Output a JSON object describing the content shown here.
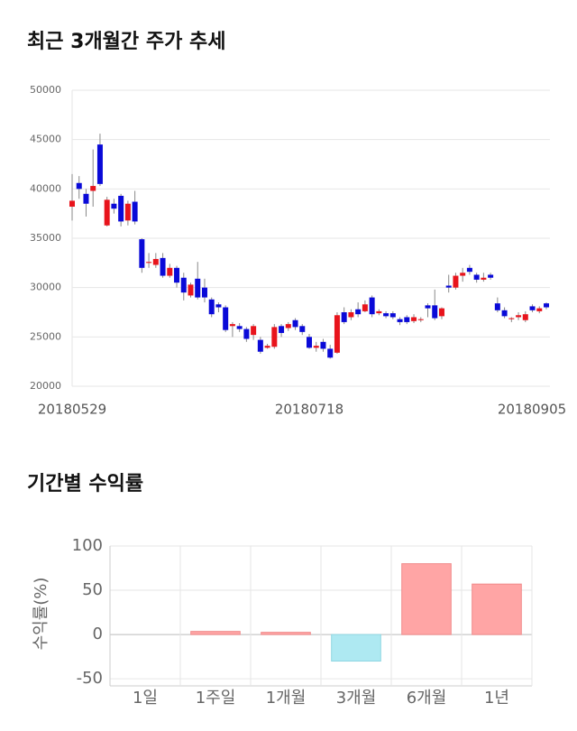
{
  "chart_data": [
    {
      "type": "candlestick",
      "title": "최근 3개월간 주가 추세",
      "categories": [
        "20180529",
        null,
        null,
        null,
        null,
        null,
        null,
        null,
        null,
        null,
        null,
        null,
        null,
        null,
        null,
        null,
        null,
        null,
        null,
        null,
        null,
        null,
        null,
        null,
        null,
        null,
        null,
        null,
        null,
        null,
        null,
        null,
        null,
        null,
        "20180718",
        null,
        null,
        null,
        null,
        null,
        null,
        null,
        null,
        null,
        null,
        null,
        null,
        null,
        null,
        null,
        null,
        null,
        null,
        null,
        null,
        null,
        null,
        null,
        null,
        null,
        null,
        null,
        null,
        null,
        null,
        null,
        null,
        null,
        "20180905"
      ],
      "open": [
        38200,
        40600,
        39500,
        39800,
        44500,
        36300,
        38500,
        39300,
        36800,
        38700,
        34900,
        32500,
        32300,
        33000,
        31200,
        32000,
        31000,
        29200,
        30900,
        30000,
        28800,
        28300,
        28000,
        26100,
        26100,
        25800,
        25200,
        24700,
        23900,
        24000,
        26100,
        25900,
        26700,
        26100,
        25000,
        23900,
        24500,
        23800,
        23400,
        27500,
        27000,
        27800,
        27600,
        29000,
        27400,
        27400,
        27400,
        26800,
        27000,
        26600,
        26700,
        28200,
        28200,
        27100,
        30200,
        30000,
        31200,
        32000,
        31300,
        30800,
        31300,
        28400,
        27700,
        26800,
        27000,
        26700,
        28100,
        27600,
        28400
      ],
      "high": [
        41500,
        41300,
        40000,
        44000,
        45600,
        39200,
        39000,
        39500,
        38800,
        39800,
        35000,
        33500,
        33500,
        33500,
        32400,
        32200,
        31500,
        30500,
        32600,
        30900,
        29000,
        28500,
        28200,
        26500,
        26400,
        26000,
        26300,
        25000,
        24300,
        26300,
        26300,
        26500,
        26900,
        26300,
        25300,
        24500,
        24800,
        24200,
        27500,
        28000,
        27800,
        28500,
        28700,
        29200,
        27800,
        27600,
        27600,
        27000,
        27200,
        27300,
        27000,
        28400,
        29800,
        28000,
        31300,
        31500,
        32000,
        32300,
        31500,
        31500,
        31500,
        29000,
        28000,
        27000,
        27500,
        27600,
        28300,
        28100,
        28500
      ],
      "low": [
        36800,
        39000,
        37200,
        38200,
        40300,
        36200,
        37500,
        36200,
        36300,
        36400,
        31500,
        32000,
        32000,
        31000,
        31000,
        30000,
        28700,
        29000,
        28800,
        28500,
        27000,
        27500,
        25500,
        25000,
        25500,
        24500,
        24700,
        23300,
        23800,
        23800,
        25000,
        25600,
        25700,
        25200,
        23800,
        23500,
        23500,
        22800,
        23300,
        26300,
        26700,
        27000,
        27500,
        27000,
        27200,
        26900,
        26800,
        26200,
        26300,
        26400,
        26500,
        27000,
        26700,
        26800,
        29500,
        29800,
        30600,
        31300,
        30500,
        30600,
        30800,
        27500,
        26900,
        26500,
        26700,
        26500,
        27500,
        27400,
        27800
      ],
      "close": [
        38800,
        40000,
        38500,
        40300,
        40500,
        38900,
        38000,
        36700,
        38500,
        36700,
        32000,
        32600,
        32900,
        31200,
        32000,
        30500,
        29500,
        30300,
        29000,
        29000,
        27300,
        28000,
        25700,
        26300,
        25800,
        24800,
        26100,
        23500,
        24100,
        26000,
        25400,
        26300,
        26000,
        25500,
        23900,
        24100,
        23800,
        22900,
        27200,
        26500,
        27500,
        27300,
        28300,
        27300,
        27600,
        27100,
        27000,
        26500,
        26500,
        27000,
        26800,
        27900,
        26900,
        27900,
        30000,
        31200,
        31500,
        31600,
        30800,
        31000,
        31000,
        27700,
        27100,
        26900,
        27200,
        27300,
        27700,
        27900,
        28000
      ],
      "up_color": "#e8141c",
      "down_color": "#0a0ad8",
      "ylim": [
        20000,
        50000
      ],
      "yticks": [
        20000,
        25000,
        30000,
        35000,
        40000,
        45000,
        50000
      ],
      "grid": true
    },
    {
      "type": "bar",
      "title": "기간별 수익률",
      "ylabel": "수익률(%)",
      "categories": [
        "1일",
        "1주일",
        "1개월",
        "3개월",
        "6개월",
        "1년"
      ],
      "values": [
        0,
        3.5,
        2.5,
        -30,
        80,
        57
      ],
      "positive_color": "#ffa5a5",
      "negative_color": "#aee9f2",
      "ylim": [
        -58,
        100
      ],
      "yticks": [
        -50,
        0,
        50,
        100
      ],
      "grid": true
    }
  ]
}
